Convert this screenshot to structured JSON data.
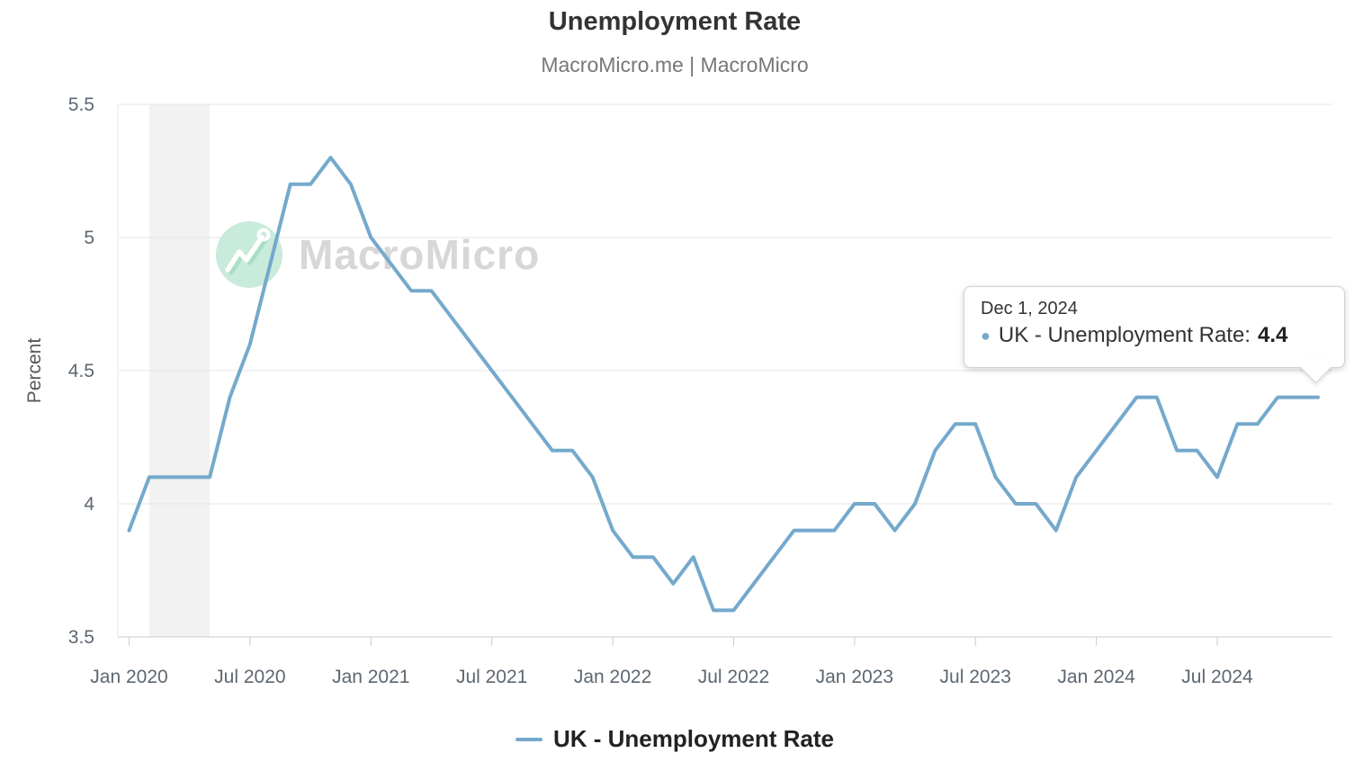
{
  "header": {
    "title": "Unemployment Rate",
    "subtitle": "MacroMicro.me | MacroMicro"
  },
  "watermark": {
    "text": "MacroMicro"
  },
  "y_axis": {
    "title": "Percent"
  },
  "tooltip": {
    "date": "Dec 1, 2024",
    "series_label": "UK - Unemployment Rate:",
    "value": "4.4"
  },
  "legend": {
    "label": "UK - Unemployment Rate"
  },
  "colors": {
    "accent": "#74a9cc",
    "grid_line": "#e6e6e6",
    "axis_line": "#cccccc",
    "tick_label": "#5d6771",
    "recession_band": "#f2f2f2",
    "title": "#333333",
    "subtitle": "#777777",
    "legend_text": "#222222",
    "tooltip_text": "#333333",
    "watermark_text": "#d7d7d7",
    "watermark_circle": "#c9ebdb"
  },
  "chart_data": {
    "type": "line",
    "title": "Unemployment Rate",
    "subtitle": "MacroMicro.me | MacroMicro",
    "xlabel": "",
    "ylabel": "Percent",
    "ylim": [
      3.5,
      5.5
    ],
    "grid": true,
    "legend_position": "bottom",
    "y_ticks": [
      3.5,
      4,
      4.5,
      5,
      5.5
    ],
    "y_tick_labels": [
      "3.5",
      "4",
      "4.5",
      "5",
      "5.5"
    ],
    "x_ticks": {
      "indices": [
        0,
        6,
        12,
        18,
        24,
        30,
        36,
        42,
        48,
        54
      ],
      "labels": [
        "Jan 2020",
        "Jul 2020",
        "Jan 2021",
        "Jul 2021",
        "Jan 2022",
        "Jul 2022",
        "Jan 2023",
        "Jul 2023",
        "Jan 2024",
        "Jul 2024"
      ]
    },
    "recession_band": {
      "start": "2020-02",
      "end": "2020-05"
    },
    "x": [
      "2020-01",
      "2020-02",
      "2020-03",
      "2020-04",
      "2020-05",
      "2020-06",
      "2020-07",
      "2020-08",
      "2020-09",
      "2020-10",
      "2020-11",
      "2020-12",
      "2021-01",
      "2021-02",
      "2021-03",
      "2021-04",
      "2021-05",
      "2021-06",
      "2021-07",
      "2021-08",
      "2021-09",
      "2021-10",
      "2021-11",
      "2021-12",
      "2022-01",
      "2022-02",
      "2022-03",
      "2022-04",
      "2022-05",
      "2022-06",
      "2022-07",
      "2022-08",
      "2022-09",
      "2022-10",
      "2022-11",
      "2022-12",
      "2023-01",
      "2023-02",
      "2023-03",
      "2023-04",
      "2023-05",
      "2023-06",
      "2023-07",
      "2023-08",
      "2023-09",
      "2023-10",
      "2023-11",
      "2023-12",
      "2024-01",
      "2024-02",
      "2024-03",
      "2024-04",
      "2024-05",
      "2024-06",
      "2024-07",
      "2024-08",
      "2024-09",
      "2024-10",
      "2024-11",
      "2024-12"
    ],
    "series": [
      {
        "name": "UK - Unemployment Rate",
        "color": "#74a9cc",
        "values": [
          3.9,
          4.1,
          4.1,
          4.1,
          4.1,
          4.4,
          4.6,
          4.9,
          5.2,
          5.2,
          5.3,
          5.2,
          5.0,
          4.9,
          4.8,
          4.8,
          4.7,
          4.6,
          4.5,
          4.4,
          4.3,
          4.2,
          4.2,
          4.1,
          3.9,
          3.8,
          3.8,
          3.7,
          3.8,
          3.6,
          3.6,
          3.7,
          3.8,
          3.9,
          3.9,
          3.9,
          4.0,
          4.0,
          3.9,
          4.0,
          4.2,
          4.3,
          4.3,
          4.1,
          4.0,
          4.0,
          3.9,
          4.1,
          4.2,
          4.3,
          4.4,
          4.4,
          4.2,
          4.2,
          4.1,
          4.3,
          4.3,
          4.4,
          4.4,
          4.4
        ]
      }
    ],
    "last_point_annotation": {
      "date": "Dec 1, 2024",
      "value": 4.4
    }
  }
}
